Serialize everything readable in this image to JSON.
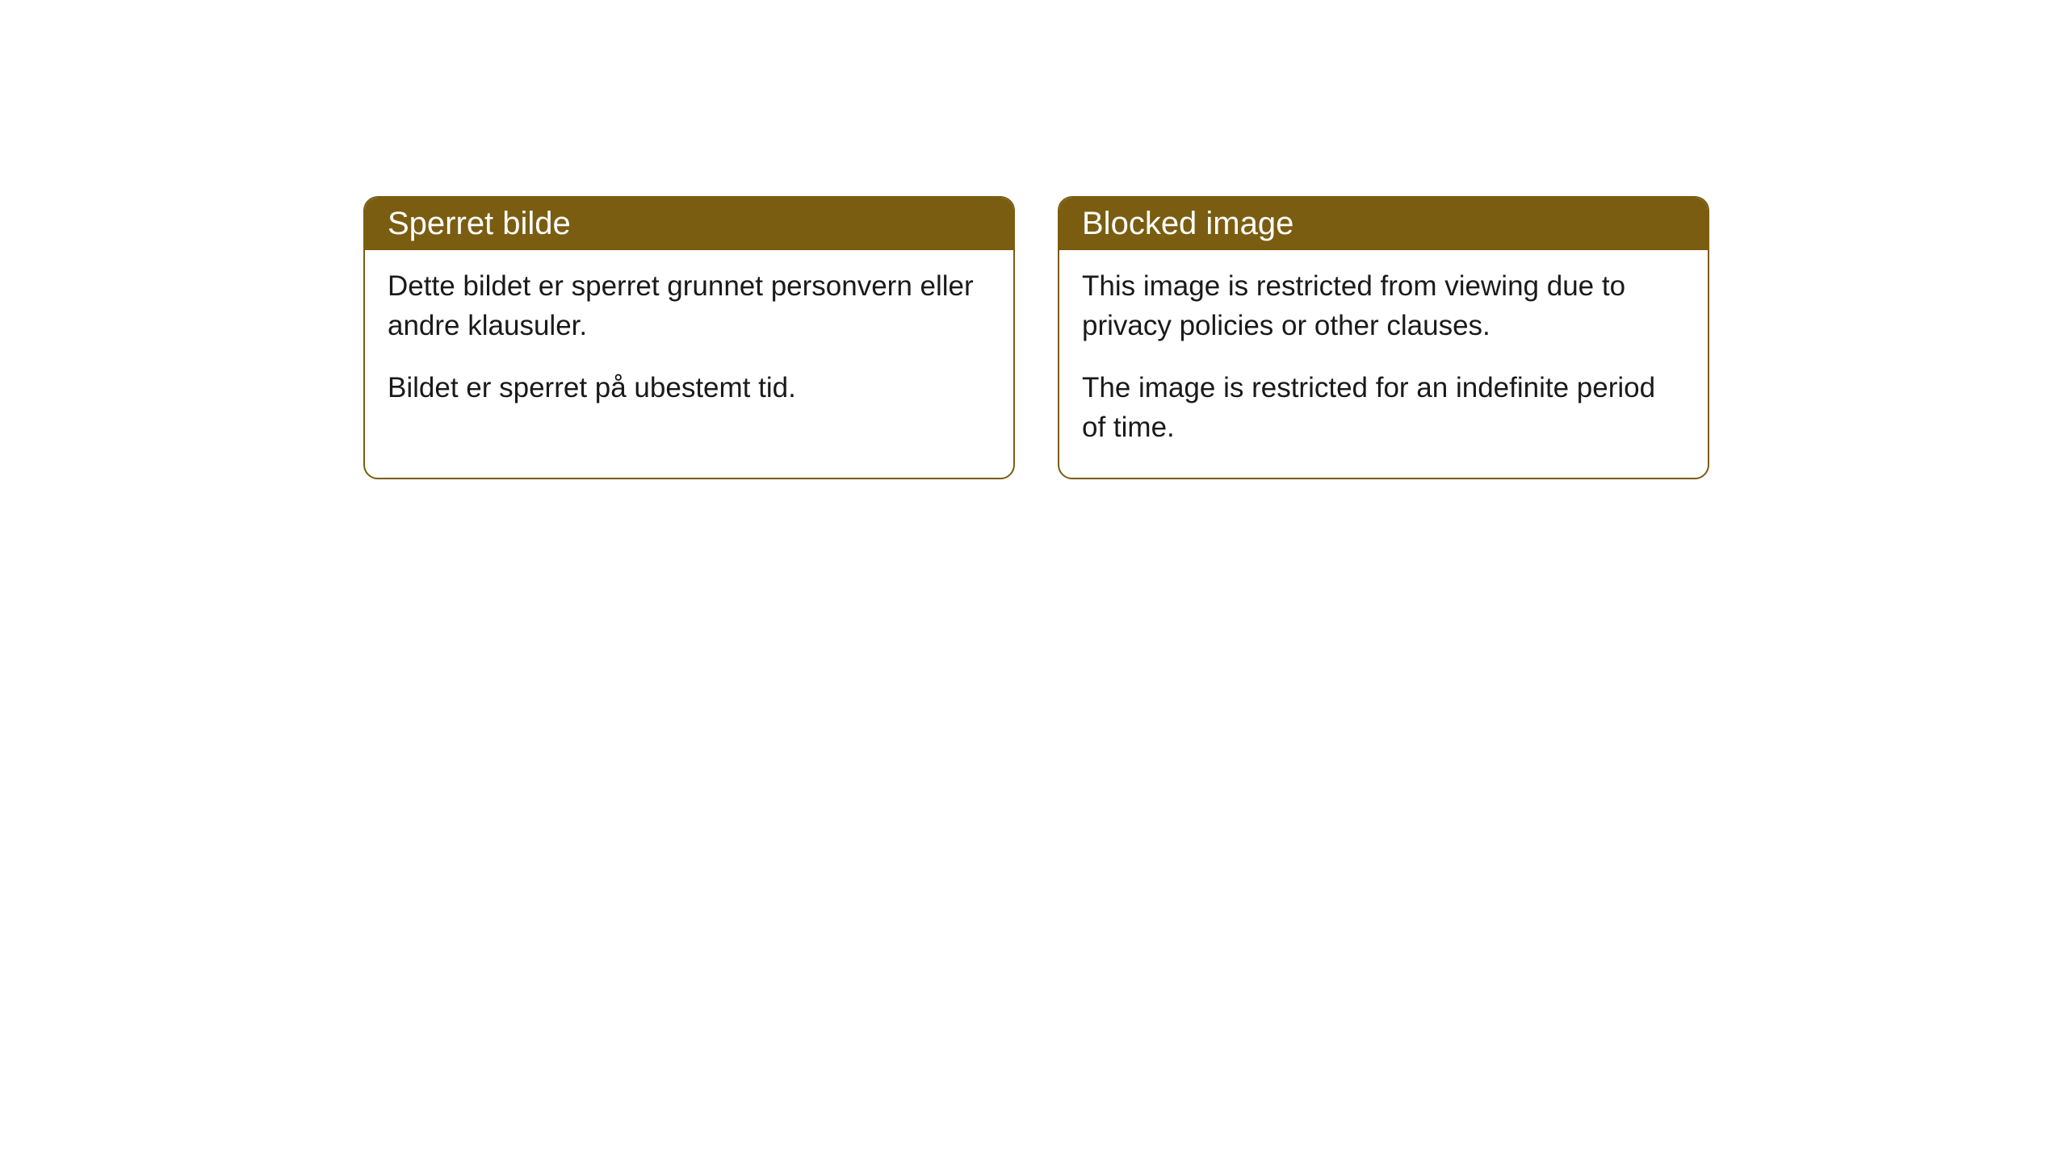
{
  "cards": [
    {
      "title": "Sperret bilde",
      "paragraph1": "Dette bildet er sperret grunnet personvern eller andre klausuler.",
      "paragraph2": "Bildet er sperret på ubestemt tid."
    },
    {
      "title": "Blocked image",
      "paragraph1": "This image is restricted from viewing due to privacy policies or other clauses.",
      "paragraph2": "The image is restricted for an indefinite period of time."
    }
  ],
  "styling": {
    "header_bg_color": "#7a5d11",
    "header_text_color": "#ffffff",
    "border_color": "#7a5d11",
    "body_text_color": "#1a1a1a",
    "card_bg_color": "#ffffff",
    "page_bg_color": "#ffffff",
    "border_radius": 18,
    "header_fontsize": 40,
    "body_fontsize": 35
  }
}
